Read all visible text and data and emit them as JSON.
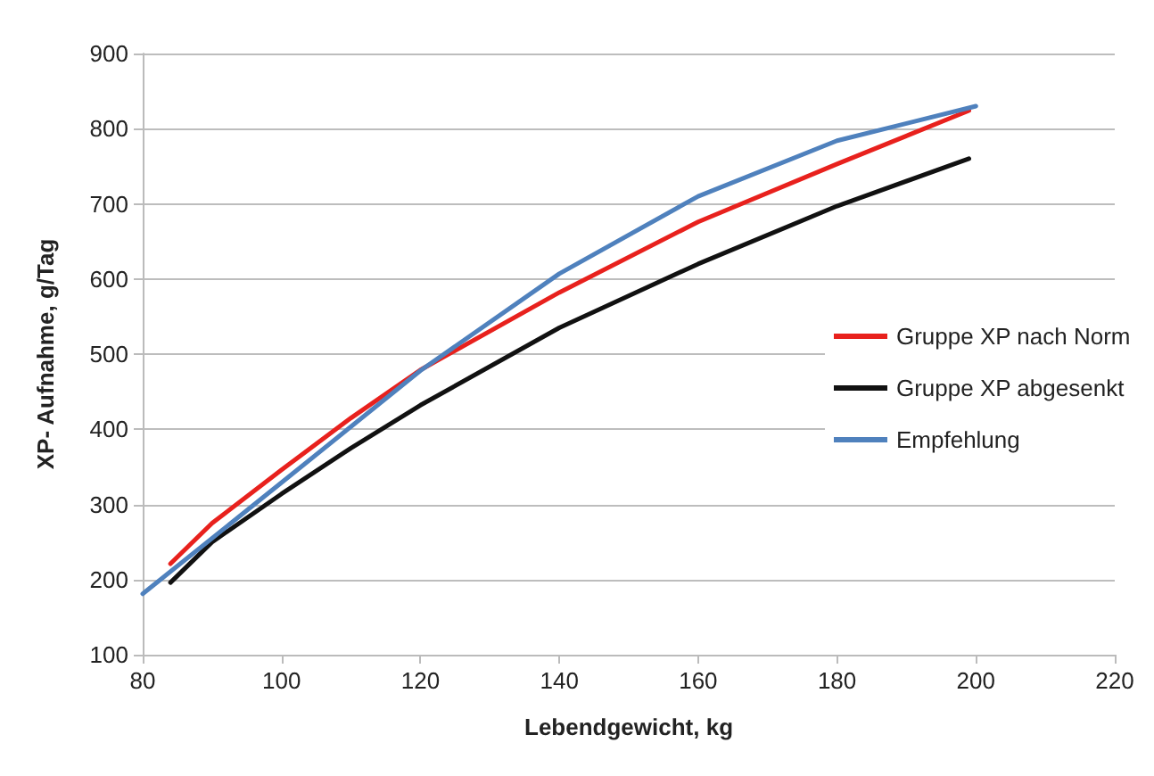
{
  "chart_data": {
    "type": "line",
    "xlabel": "Lebendgewicht, kg",
    "ylabel": "XP- Aufnahme, g/Tag",
    "xlim": [
      80,
      220
    ],
    "xticks": [
      80,
      100,
      120,
      140,
      160,
      180,
      200,
      220
    ],
    "ylim": [
      100,
      900
    ],
    "yticks": [
      100,
      200,
      300,
      400,
      500,
      600,
      700,
      800,
      900
    ],
    "grid": "y",
    "legend": "right",
    "marker": "none",
    "line_style": "solid",
    "series": [
      {
        "name": "Gruppe XP nach Norm",
        "color": "#e8211d",
        "x": [
          84,
          90,
          100,
          110,
          120,
          140,
          160,
          180,
          199
        ],
        "values": [
          221,
          275,
          346,
          415,
          479,
          582,
          676,
          753,
          824
        ]
      },
      {
        "name": "Gruppe XP abgesenkt",
        "color": "#111111",
        "x": [
          84,
          90,
          100,
          110,
          120,
          140,
          160,
          180,
          199
        ],
        "values": [
          196,
          250,
          314,
          375,
          432,
          535,
          620,
          697,
          760
        ]
      },
      {
        "name": "Empfehlung",
        "color": "#4f81bd",
        "x": [
          80,
          100,
          120,
          140,
          160,
          180,
          200
        ],
        "values": [
          181,
          329,
          478,
          607,
          710,
          784,
          830
        ]
      }
    ]
  }
}
